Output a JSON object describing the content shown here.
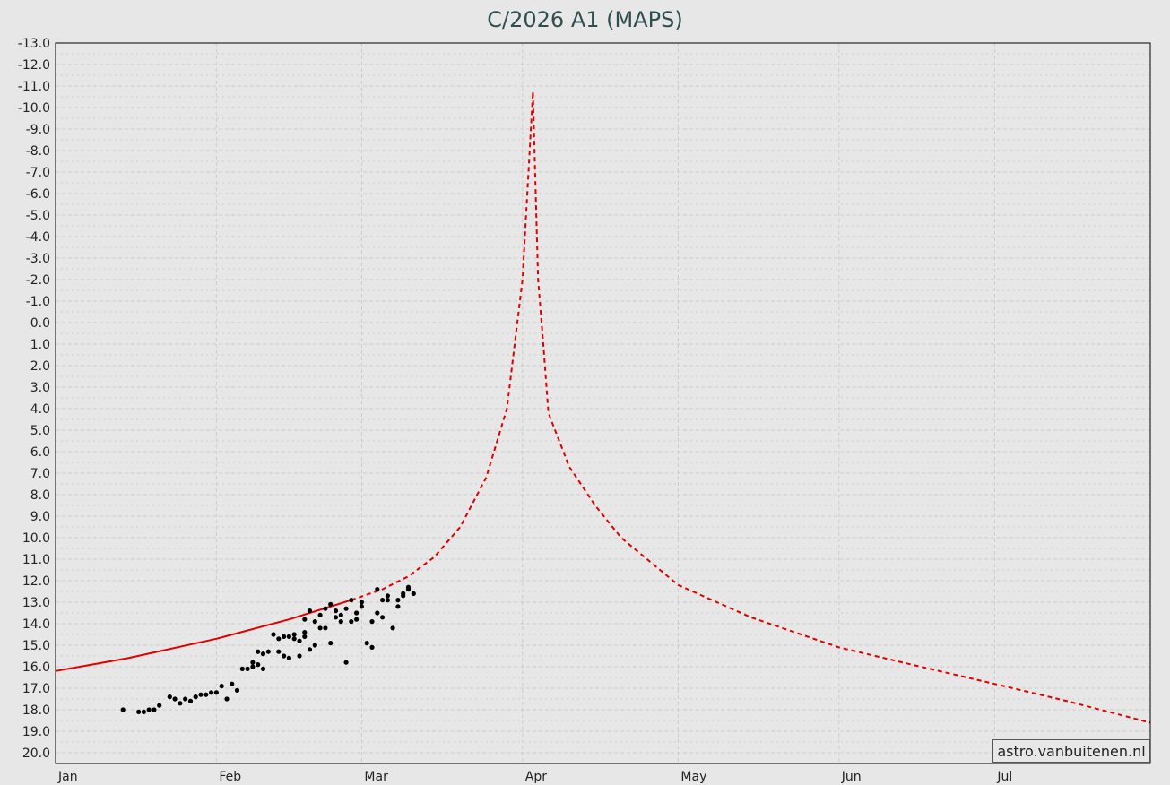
{
  "chart_data": {
    "type": "line",
    "title": "C/2026 A1 (MAPS)",
    "xlabel": "",
    "ylabel": "",
    "x_axis": {
      "kind": "date",
      "range": [
        "2026-01-01",
        "2026-07-31"
      ],
      "ticks": [
        {
          "date": "2026-01-01",
          "label": "Jan"
        },
        {
          "date": "2026-02-01",
          "label": "Feb"
        },
        {
          "date": "2026-03-01",
          "label": "Mar"
        },
        {
          "date": "2026-04-01",
          "label": "Apr"
        },
        {
          "date": "2026-05-01",
          "label": "May"
        },
        {
          "date": "2026-06-01",
          "label": "Jun"
        },
        {
          "date": "2026-07-01",
          "label": "Jul"
        }
      ]
    },
    "y_axis": {
      "inverted": true,
      "ylim": [
        20.5,
        -13.0
      ],
      "major_step": 1.0,
      "minor_step": 0.5,
      "tick_labels": [
        "-13.0",
        "-12.0",
        "-11.0",
        "-10.0",
        "-9.0",
        "-8.0",
        "-7.0",
        "-6.0",
        "-5.0",
        "-4.0",
        "-3.0",
        "-2.0",
        "-1.0",
        "0.0",
        "1.0",
        "2.0",
        "3.0",
        "4.0",
        "5.0",
        "6.0",
        "7.0",
        "8.0",
        "9.0",
        "10.0",
        "11.0",
        "12.0",
        "13.0",
        "14.0",
        "15.0",
        "16.0",
        "17.0",
        "18.0",
        "19.0",
        "20.0"
      ]
    },
    "grid": true,
    "colors": {
      "curve": "#e00000",
      "observation": "#000000",
      "plot_bg": "#e7e7e7",
      "grid": "#cccccc"
    },
    "series": [
      {
        "style": "solid",
        "color": "#e00000",
        "points": [
          [
            "2026-01-01",
            16.2
          ],
          [
            "2026-01-15",
            15.6
          ],
          [
            "2026-02-01",
            14.7
          ],
          [
            "2026-02-15",
            13.8
          ],
          [
            "2026-02-27",
            12.9
          ]
        ]
      },
      {
        "style": "dashed",
        "color": "#e00000",
        "points": [
          [
            "2026-02-27",
            12.9
          ],
          [
            "2026-03-05",
            12.4
          ],
          [
            "2026-03-10",
            11.8
          ],
          [
            "2026-03-15",
            10.9
          ],
          [
            "2026-03-20",
            9.5
          ],
          [
            "2026-03-25",
            7.2
          ],
          [
            "2026-03-29",
            4.0
          ],
          [
            "2026-04-01",
            -2.0
          ],
          [
            "2026-04-03",
            -10.7
          ]
        ]
      },
      {
        "style": "dashed",
        "color": "#e00000",
        "points": [
          [
            "2026-04-03",
            -10.7
          ],
          [
            "2026-04-04",
            -2.0
          ],
          [
            "2026-04-05",
            1.0
          ],
          [
            "2026-04-06",
            4.2
          ],
          [
            "2026-04-10",
            6.7
          ],
          [
            "2026-04-15",
            8.5
          ],
          [
            "2026-04-20",
            10.0
          ],
          [
            "2026-05-01",
            12.2
          ],
          [
            "2026-05-15",
            13.7
          ],
          [
            "2026-06-01",
            15.1
          ],
          [
            "2026-06-15",
            15.9
          ],
          [
            "2026-07-01",
            16.8
          ],
          [
            "2026-07-15",
            17.6
          ],
          [
            "2026-07-31",
            18.6
          ]
        ]
      }
    ],
    "observations": [
      [
        "2026-01-14",
        18.0
      ],
      [
        "2026-01-17",
        18.1
      ],
      [
        "2026-01-18",
        18.1
      ],
      [
        "2026-01-19",
        18.0
      ],
      [
        "2026-01-20",
        18.0
      ],
      [
        "2026-01-21",
        17.8
      ],
      [
        "2026-01-23",
        17.4
      ],
      [
        "2026-01-24",
        17.5
      ],
      [
        "2026-01-25",
        17.7
      ],
      [
        "2026-01-26",
        17.5
      ],
      [
        "2026-01-27",
        17.6
      ],
      [
        "2026-01-28",
        17.4
      ],
      [
        "2026-01-29",
        17.3
      ],
      [
        "2026-01-30",
        17.3
      ],
      [
        "2026-01-31",
        17.2
      ],
      [
        "2026-02-01",
        17.2
      ],
      [
        "2026-02-02",
        16.9
      ],
      [
        "2026-02-03",
        17.5
      ],
      [
        "2026-02-04",
        16.8
      ],
      [
        "2026-02-05",
        17.1
      ],
      [
        "2026-02-06",
        16.1
      ],
      [
        "2026-02-07",
        16.1
      ],
      [
        "2026-02-08",
        15.8
      ],
      [
        "2026-02-08",
        16.0
      ],
      [
        "2026-02-09",
        15.3
      ],
      [
        "2026-02-09",
        15.9
      ],
      [
        "2026-02-10",
        15.4
      ],
      [
        "2026-02-10",
        16.1
      ],
      [
        "2026-02-11",
        15.3
      ],
      [
        "2026-02-12",
        14.5
      ],
      [
        "2026-02-13",
        15.3
      ],
      [
        "2026-02-13",
        14.7
      ],
      [
        "2026-02-14",
        15.5
      ],
      [
        "2026-02-14",
        14.6
      ],
      [
        "2026-02-15",
        14.6
      ],
      [
        "2026-02-15",
        15.6
      ],
      [
        "2026-02-16",
        14.7
      ],
      [
        "2026-02-16",
        14.5
      ],
      [
        "2026-02-17",
        14.8
      ],
      [
        "2026-02-17",
        15.5
      ],
      [
        "2026-02-18",
        13.8
      ],
      [
        "2026-02-18",
        14.4
      ],
      [
        "2026-02-18",
        14.6
      ],
      [
        "2026-02-19",
        13.4
      ],
      [
        "2026-02-19",
        15.2
      ],
      [
        "2026-02-20",
        13.9
      ],
      [
        "2026-02-20",
        15.0
      ],
      [
        "2026-02-21",
        14.2
      ],
      [
        "2026-02-21",
        13.6
      ],
      [
        "2026-02-22",
        14.2
      ],
      [
        "2026-02-22",
        13.3
      ],
      [
        "2026-02-23",
        13.1
      ],
      [
        "2026-02-23",
        14.9
      ],
      [
        "2026-02-24",
        13.7
      ],
      [
        "2026-02-24",
        13.4
      ],
      [
        "2026-02-25",
        13.6
      ],
      [
        "2026-02-25",
        13.9
      ],
      [
        "2026-02-26",
        13.3
      ],
      [
        "2026-02-26",
        15.8
      ],
      [
        "2026-02-27",
        13.9
      ],
      [
        "2026-02-27",
        12.9
      ],
      [
        "2026-02-28",
        13.5
      ],
      [
        "2026-02-28",
        13.8
      ],
      [
        "2026-03-01",
        13.2
      ],
      [
        "2026-03-01",
        13.0
      ],
      [
        "2026-03-02",
        14.9
      ],
      [
        "2026-03-03",
        15.1
      ],
      [
        "2026-03-03",
        13.9
      ],
      [
        "2026-03-04",
        12.4
      ],
      [
        "2026-03-04",
        13.5
      ],
      [
        "2026-03-05",
        12.9
      ],
      [
        "2026-03-05",
        13.7
      ],
      [
        "2026-03-06",
        12.7
      ],
      [
        "2026-03-06",
        12.9
      ],
      [
        "2026-03-07",
        14.2
      ],
      [
        "2026-03-08",
        12.9
      ],
      [
        "2026-03-08",
        13.2
      ],
      [
        "2026-03-09",
        12.7
      ],
      [
        "2026-03-09",
        12.6
      ],
      [
        "2026-03-10",
        12.4
      ],
      [
        "2026-03-10",
        12.3
      ],
      [
        "2026-03-11",
        12.6
      ]
    ],
    "credit": "astro.vanbuitenen.nl"
  }
}
